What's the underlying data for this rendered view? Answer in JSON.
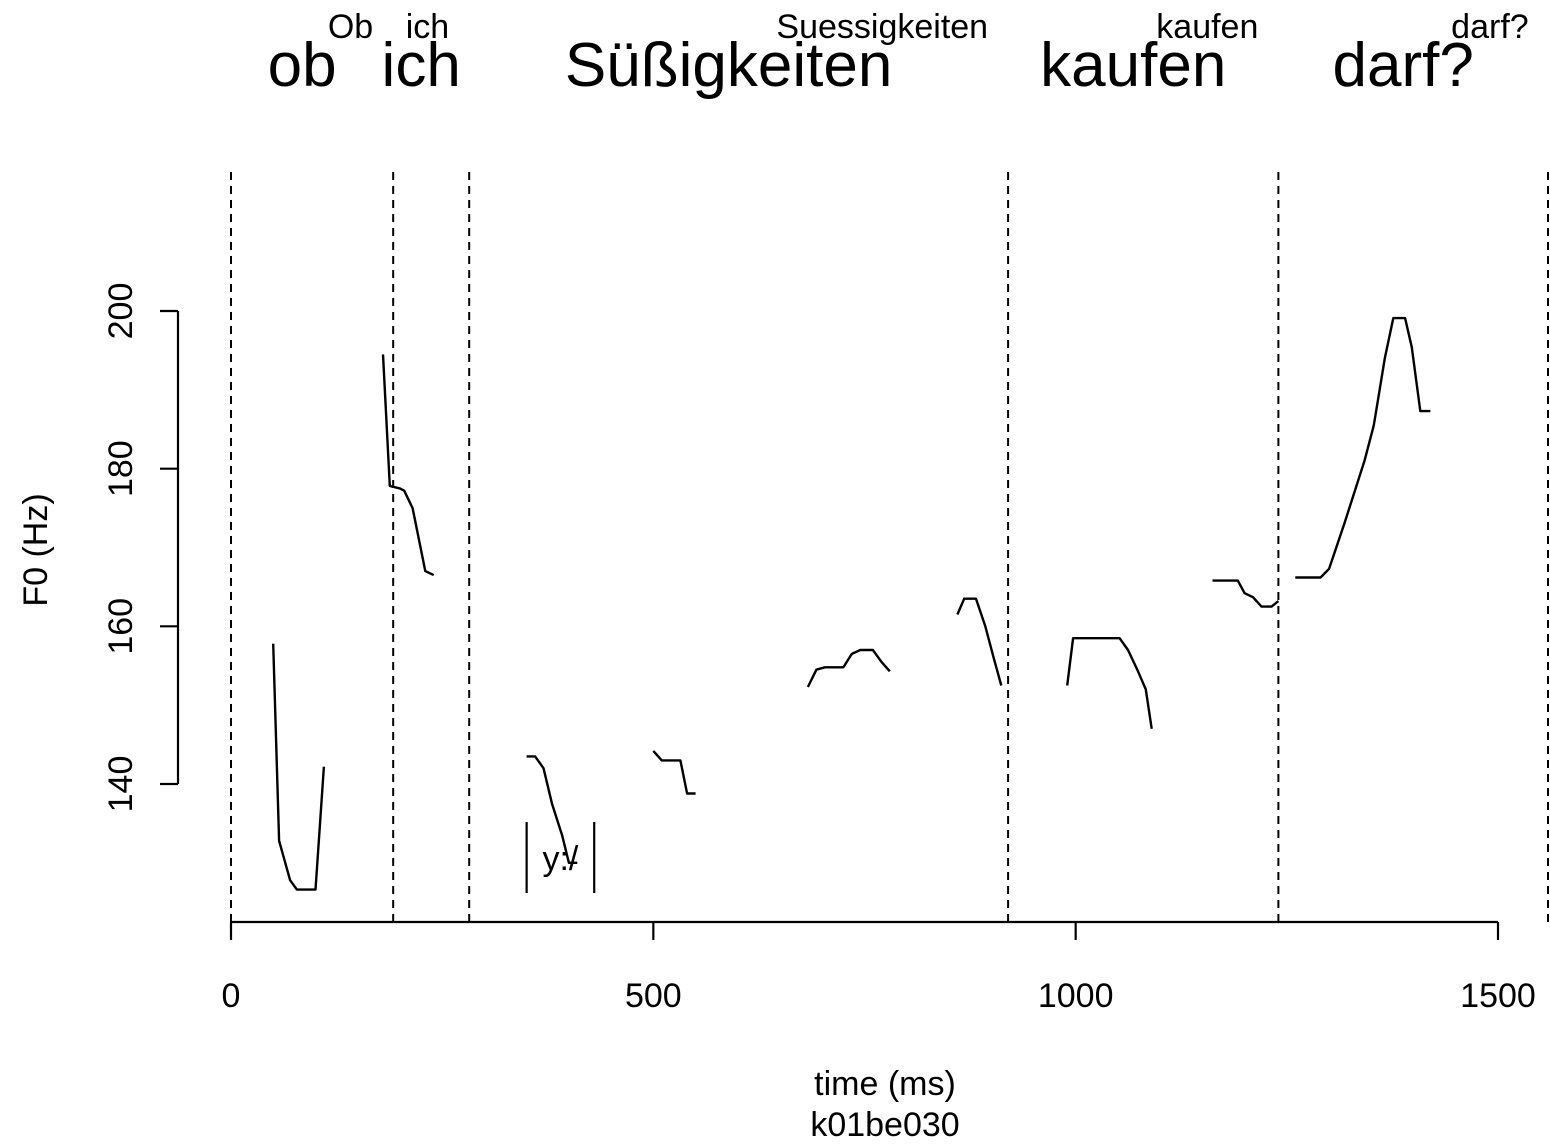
{
  "chart_data": {
    "type": "line",
    "xlabel": "time (ms)",
    "ylabel": "F0 (Hz)",
    "utterance_id": "k01be030",
    "xlim": [
      0,
      1500
    ],
    "ylim": [
      123,
      200
    ],
    "x_ticks": [
      0,
      500,
      1000,
      1500
    ],
    "y_ticks": [
      140,
      160,
      180,
      200
    ],
    "word_boundaries": [
      0,
      192,
      282,
      920,
      1240,
      1560
    ],
    "words": [
      {
        "label": "ob",
        "orthography": "Ob",
        "start": 0,
        "end": 192
      },
      {
        "label": "ich",
        "orthography": "ich",
        "start": 192,
        "end": 282
      },
      {
        "label": "Süßigkeiten",
        "orthography": "Suessigkeiten",
        "start": 282,
        "end": 920
      },
      {
        "label": "kaufen",
        "orthography": "kaufen",
        "start": 920,
        "end": 1240
      },
      {
        "label": "darf?",
        "orthography": "darf?",
        "start": 1240,
        "end": 1560
      }
    ],
    "phone_annotations": [
      {
        "label": "y:/",
        "start": 350,
        "end": 430
      }
    ],
    "series": [
      {
        "values": [
          [
            50,
            157.8
          ],
          [
            57,
            132.8
          ],
          [
            70,
            127.8
          ],
          [
            78,
            126.6
          ],
          [
            100,
            126.6
          ],
          [
            110,
            142.2
          ]
        ]
      },
      {
        "values": [
          [
            180,
            194.5
          ],
          [
            188,
            177.8
          ],
          [
            200,
            177.5
          ],
          [
            205,
            177.2
          ],
          [
            215,
            175
          ],
          [
            230,
            167
          ],
          [
            240,
            166.5
          ]
        ]
      },
      {
        "values": [
          [
            350,
            143.5
          ],
          [
            360,
            143.5
          ],
          [
            370,
            142
          ],
          [
            380,
            137.5
          ],
          [
            392,
            133.5
          ],
          [
            400,
            130
          ],
          [
            410,
            130
          ]
        ]
      },
      {
        "values": [
          [
            500,
            144.2
          ],
          [
            510,
            143
          ],
          [
            532,
            143
          ],
          [
            540,
            138.8
          ],
          [
            550,
            138.8
          ]
        ]
      },
      {
        "values": [
          [
            683,
            152.3
          ],
          [
            693,
            154.5
          ],
          [
            703,
            154.8
          ],
          [
            725,
            154.8
          ],
          [
            735,
            156.5
          ],
          [
            745,
            157
          ],
          [
            760,
            157
          ],
          [
            770,
            155.5
          ],
          [
            780,
            154.3
          ]
        ]
      },
      {
        "values": [
          [
            860,
            161.5
          ],
          [
            868,
            163.5
          ],
          [
            882,
            163.5
          ],
          [
            893,
            160
          ],
          [
            903,
            156
          ],
          [
            912,
            152.5
          ]
        ]
      },
      {
        "values": [
          [
            990,
            152.5
          ],
          [
            997,
            158.5
          ],
          [
            1052,
            158.5
          ],
          [
            1062,
            157
          ],
          [
            1073,
            154.5
          ],
          [
            1083,
            152
          ],
          [
            1090,
            147
          ]
        ]
      },
      {
        "values": [
          [
            1162,
            165.8
          ],
          [
            1192,
            165.8
          ],
          [
            1200,
            164.2
          ],
          [
            1210,
            163.7
          ],
          [
            1220,
            162.5
          ],
          [
            1232,
            162.5
          ],
          [
            1240,
            163.2
          ]
        ]
      },
      {
        "values": [
          [
            1260,
            166.2
          ],
          [
            1290,
            166.2
          ],
          [
            1300,
            167.3
          ],
          [
            1318,
            173
          ],
          [
            1330,
            177
          ],
          [
            1342,
            181
          ],
          [
            1353,
            185.5
          ],
          [
            1366,
            194
          ],
          [
            1376,
            199.1
          ],
          [
            1390,
            199.1
          ],
          [
            1398,
            195.4
          ],
          [
            1408,
            187.3
          ],
          [
            1420,
            187.3
          ]
        ]
      }
    ]
  }
}
